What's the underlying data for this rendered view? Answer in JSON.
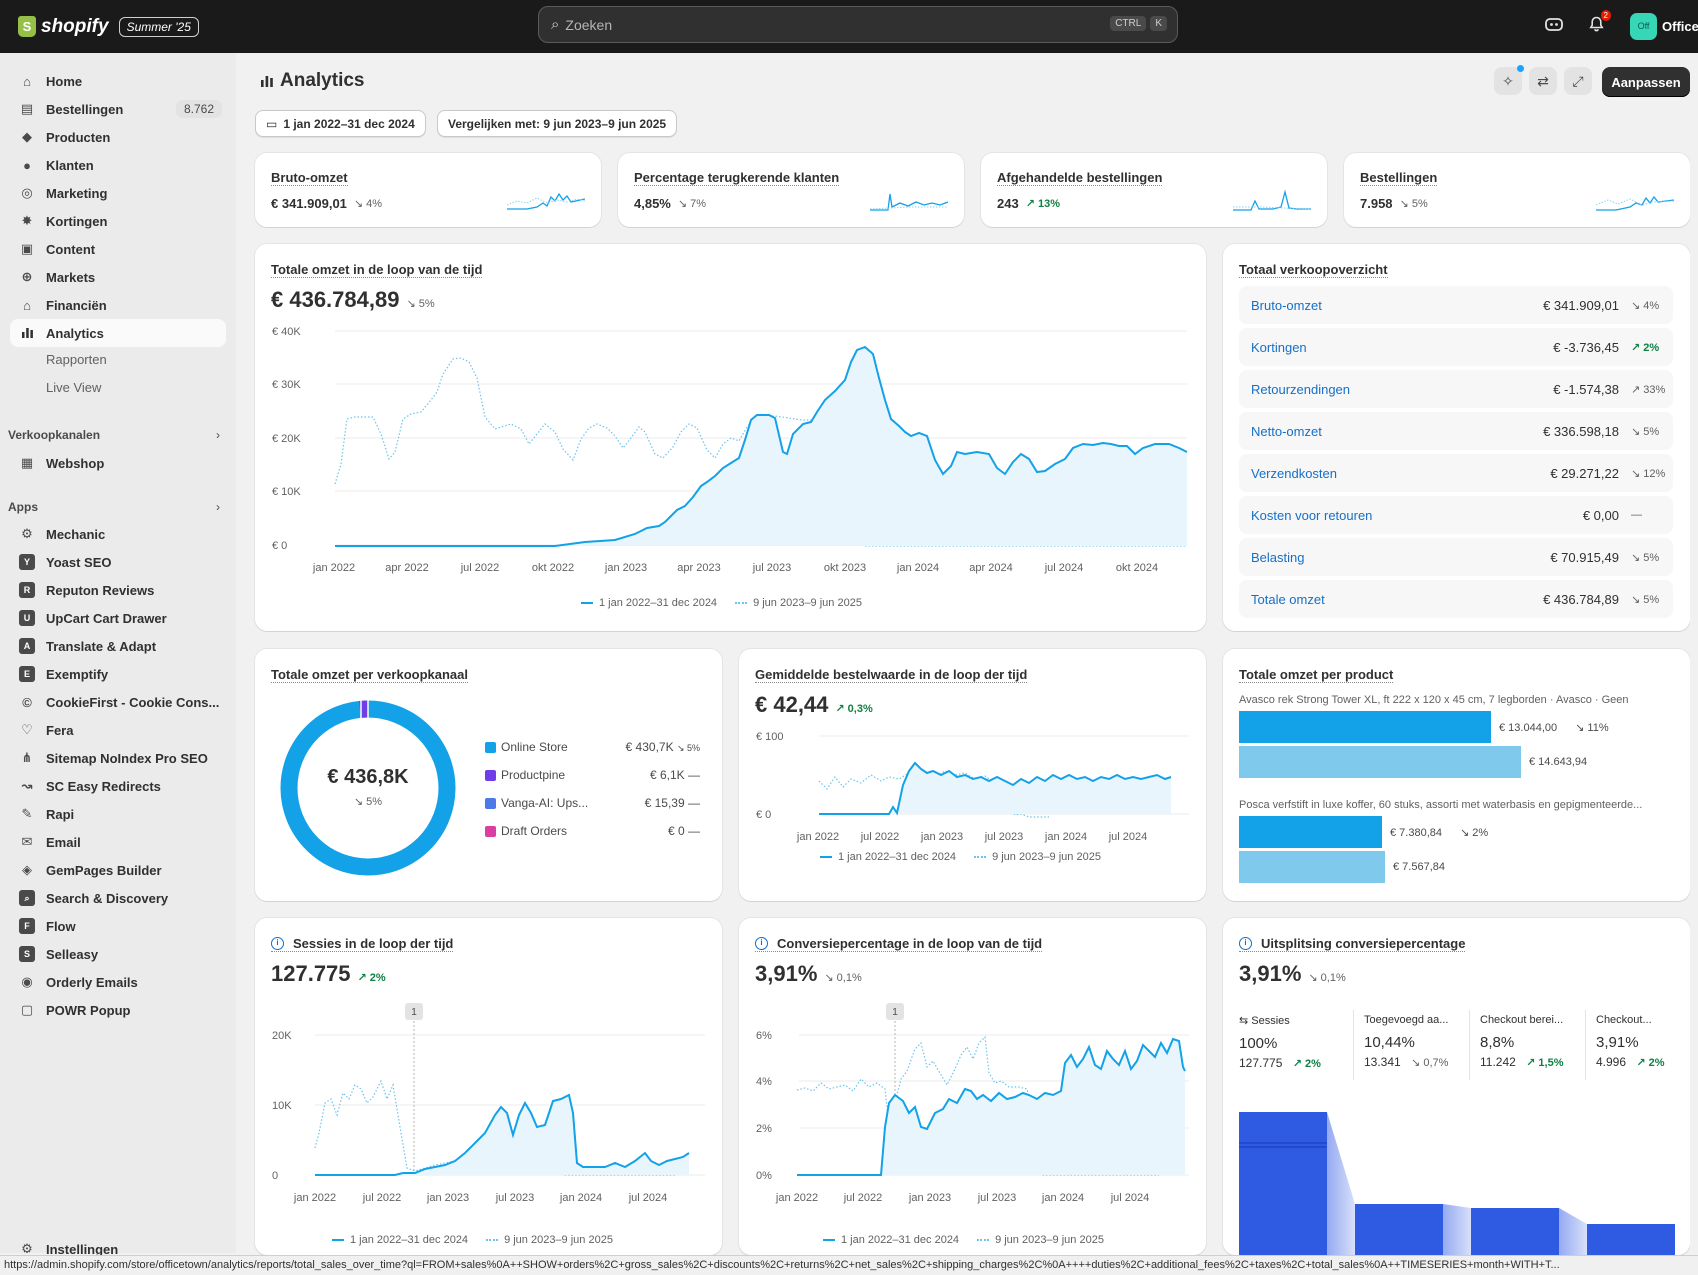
{
  "topbar": {
    "brand": "shopify",
    "edition": "Summer '25",
    "search_placeholder": "Zoeken",
    "shortcut_1": "CTRL",
    "shortcut_2": "K",
    "notification_count": "2",
    "store_avatar": "Off",
    "store_name": "OfficeTown"
  },
  "sidebar": {
    "nav": [
      {
        "label": "Home",
        "icon": "home-icon"
      },
      {
        "label": "Bestellingen",
        "icon": "orders-icon",
        "count": "8.762"
      },
      {
        "label": "Producten",
        "icon": "tag-icon"
      },
      {
        "label": "Klanten",
        "icon": "person-icon"
      },
      {
        "label": "Marketing",
        "icon": "target-icon"
      },
      {
        "label": "Kortingen",
        "icon": "discount-icon"
      },
      {
        "label": "Content",
        "icon": "content-icon"
      },
      {
        "label": "Markets",
        "icon": "globe-icon"
      },
      {
        "label": "Financiën",
        "icon": "bank-icon"
      },
      {
        "label": "Analytics",
        "icon": "chart-icon"
      }
    ],
    "analytics_sub": [
      "Rapporten",
      "Live View"
    ],
    "sales_channels_heading": "Verkoopkanalen",
    "sales_channels": [
      {
        "label": "Webshop"
      }
    ],
    "apps_heading": "Apps",
    "apps": [
      "Mechanic",
      "Yoast SEO",
      "Reputon Reviews",
      "UpCart Cart Drawer",
      "Translate & Adapt",
      "Exemptify",
      "CookieFirst - Cookie Cons...",
      "Fera",
      "Sitemap NoIndex Pro SEO",
      "SC Easy Redirects",
      "Rapi",
      "Email",
      "GemPages Builder",
      "Search & Discovery",
      "Flow",
      "Selleasy",
      "Orderly Emails",
      "POWR Popup"
    ],
    "settings": "Instellingen"
  },
  "header": {
    "title": "Analytics",
    "date_range": "1 jan 2022–31 dec 2024",
    "compare": "Vergelijken met: 9 jun 2023–9 jun 2025",
    "customize": "Aanpassen"
  },
  "kpis": [
    {
      "title": "Bruto-omzet",
      "value": "€ 341.909,01",
      "change": "↘ 4%",
      "dir": "down"
    },
    {
      "title": "Percentage terugkerende klanten",
      "value": "4,85%",
      "change": "↘ 7%",
      "dir": "down"
    },
    {
      "title": "Afgehandelde bestellingen",
      "value": "243",
      "change": "↗ 13%",
      "dir": "up"
    },
    {
      "title": "Bestellingen",
      "value": "7.958",
      "change": "↘ 5%",
      "dir": "down"
    }
  ],
  "legend": {
    "current": "1 jan 2022–31 dec 2024",
    "previous": "9 jun 2023–9 jun 2025"
  },
  "total_sales": {
    "title": "Totale omzet in de loop van de tijd",
    "value": "€ 436.784,89",
    "change": "↘ 5%",
    "y_ticks": [
      "€ 40K",
      "€ 30K",
      "€ 20K",
      "€ 10K",
      "€ 0"
    ],
    "x_ticks": [
      "jan 2022",
      "apr 2022",
      "jul 2022",
      "okt 2022",
      "jan 2023",
      "apr 2023",
      "jul 2023",
      "okt 2023",
      "jan 2024",
      "apr 2024",
      "jul 2024",
      "okt 2024"
    ]
  },
  "summary": {
    "title": "Totaal verkoopoverzicht",
    "rows": [
      {
        "label": "Bruto-omzet",
        "value": "€ 341.909,01",
        "change": "↘ 4%",
        "dir": "down"
      },
      {
        "label": "Kortingen",
        "value": "€ -3.736,45",
        "change": "↗ 2%",
        "dir": "up"
      },
      {
        "label": "Retourzendingen",
        "value": "€ -1.574,38",
        "change": "↗ 33%",
        "dir": "down"
      },
      {
        "label": "Netto-omzet",
        "value": "€ 336.598,18",
        "change": "↘ 5%",
        "dir": "down"
      },
      {
        "label": "Verzendkosten",
        "value": "€ 29.271,22",
        "change": "↘ 12%",
        "dir": "down"
      },
      {
        "label": "Kosten voor retouren",
        "value": "€ 0,00",
        "change": "—",
        "dir": "down"
      },
      {
        "label": "Belasting",
        "value": "€ 70.915,49",
        "change": "↘ 5%",
        "dir": "down"
      },
      {
        "label": "Totale omzet",
        "value": "€ 436.784,89",
        "change": "↘ 5%",
        "dir": "down"
      }
    ]
  },
  "channel": {
    "title": "Totale omzet per verkoopkanaal",
    "center_value": "€ 436,8K",
    "center_change": "↘ 5%",
    "items": [
      {
        "label": "Online Store",
        "value": "€ 430,7K",
        "change": "↘ 5%",
        "color": "#13a1e8",
        "share": 0.986
      },
      {
        "label": "Productpine",
        "value": "€ 6,1K",
        "change": "—",
        "color": "#6f3ee8",
        "share": 0.014
      },
      {
        "label": "Vanga-AI: Ups...",
        "value": "€ 15,39",
        "change": "—",
        "color": "#4d79e6",
        "share": 0.0
      },
      {
        "label": "Draft Orders",
        "value": "€ 0",
        "change": "—",
        "color": "#d93ea0",
        "share": 0.0
      }
    ]
  },
  "aov": {
    "title": "Gemiddelde bestelwaarde in de loop der tijd",
    "value": "€ 42,44",
    "change": "↗ 0,3%",
    "y_ticks": [
      "€ 100",
      "€ 0"
    ],
    "x_ticks": [
      "jan 2022",
      "jul 2022",
      "jan 2023",
      "jul 2023",
      "jan 2024",
      "jul 2024"
    ]
  },
  "product": {
    "title": "Totale omzet per product",
    "items": [
      {
        "name": "Avasco rek Strong Tower XL, ft 222 x 120 x 45 cm, 7 legborden · Avasco · Geen",
        "current": "€ 13.044,00",
        "previous": "€ 14.643,94",
        "change": "↘ 11%",
        "cur_val": 13044.0,
        "prev_val": 14643.94
      },
      {
        "name": "Posca verfstift in luxe koffer, 60 stuks, assorti met waterbasis en gepigmenteerde...",
        "current": "€ 7.380,84",
        "previous": "€ 7.567,84",
        "change": "↘ 2%",
        "cur_val": 7380.84,
        "prev_val": 7567.84
      }
    ]
  },
  "sessions": {
    "title": "Sessies in de loop der tijd",
    "value": "127.775",
    "change": "↗ 2%",
    "marker": "1",
    "y_ticks": [
      "20K",
      "10K",
      "0"
    ],
    "x_ticks": [
      "jan 2022",
      "jul 2022",
      "jan 2023",
      "jul 2023",
      "jan 2024",
      "jul 2024"
    ]
  },
  "conversion": {
    "title": "Conversiepercentage in de loop van de tijd",
    "value": "3,91%",
    "change": "↘ 0,1%",
    "marker": "1",
    "y_ticks": [
      "6%",
      "4%",
      "2%",
      "0%"
    ],
    "x_ticks": [
      "jan 2022",
      "jul 2022",
      "jan 2023",
      "jul 2023",
      "jan 2024",
      "jul 2024"
    ]
  },
  "breakdown": {
    "title": "Uitsplitsing conversiepercentage",
    "value": "3,91%",
    "change": "↘ 0,1%",
    "steps": [
      {
        "label": "Sessies",
        "pct": "100%",
        "count": "127.775",
        "change": "↗ 2%",
        "share": 1.0
      },
      {
        "label": "Toegevoegd aa...",
        "pct": "10,44%",
        "count": "13.341",
        "change": "↘ 0,7%",
        "share": 0.1044
      },
      {
        "label": "Checkout berei...",
        "pct": "8,8%",
        "count": "11.242",
        "change": "↗ 1,5%",
        "share": 0.088
      },
      {
        "label": "Checkout...",
        "pct": "3,91%",
        "count": "4.996",
        "change": "↗ 2%",
        "share": 0.0391
      }
    ]
  },
  "status_url": "https://admin.shopify.com/store/officetown/analytics/reports/total_sales_over_time?ql=FROM+sales%0A++SHOW+orders%2C+gross_sales%2C+discounts%2C+returns%2C+net_sales%2C+shipping_charges%2C%0A++++duties%2C+additional_fees%2C+taxes%2C+total_sales%0A++TIMESERIES+month+WITH+T..."
}
